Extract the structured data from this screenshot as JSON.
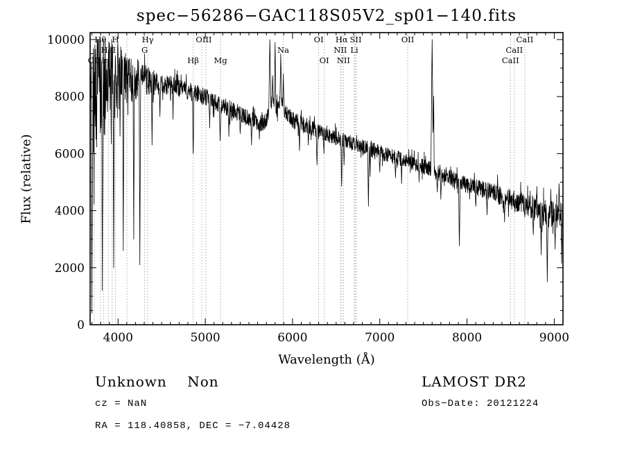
{
  "header": {
    "title": "spec−56286−GAC118S05V2_sp01−140.fits"
  },
  "footer": {
    "class_label": "Unknown    Non",
    "survey": "LAMOST DR2",
    "cz": "cz = NaN",
    "obs_date": "Obs−Date: 20121224",
    "ra_dec": "RA = 118.40858, DEC = −7.04428"
  },
  "colors": {
    "trace": "#000000",
    "ref_line": "#aaaaaa",
    "axis": "#000000",
    "background": "#ffffff"
  },
  "chart_data": {
    "type": "line",
    "title": "spec−56286−GAC118S05V2_sp01−140.fits",
    "xlabel": "Wavelength (Å)",
    "ylabel": "Flux (relative)",
    "xlim": [
      3680,
      9100
    ],
    "ylim": [
      0,
      10000
    ],
    "x_ticks": [
      4000,
      5000,
      6000,
      7000,
      8000,
      9000
    ],
    "y_ticks": [
      0,
      2000,
      4000,
      6000,
      8000,
      10000
    ],
    "x_minor_step": 100,
    "y_minor_step": 500,
    "grid": false,
    "legend": null,
    "ref_lines": [
      3727,
      3798,
      3835,
      3889,
      3933,
      3970,
      4101,
      4305,
      4340,
      4861,
      4959,
      5007,
      5175,
      5893,
      6300,
      6364,
      6548,
      6563,
      6584,
      6708,
      6717,
      6731,
      7320,
      8498,
      8542,
      8662
    ],
    "line_labels": [
      {
        "text": "Hθ",
        "wl": 3798,
        "row": 0
      },
      {
        "text": "H",
        "wl": 3970,
        "row": 0
      },
      {
        "text": "Hγ",
        "wl": 4340,
        "row": 0
      },
      {
        "text": "OIII",
        "wl": 4983,
        "row": 0
      },
      {
        "text": "OI",
        "wl": 6300,
        "row": 0
      },
      {
        "text": "Hα",
        "wl": 6563,
        "row": 0
      },
      {
        "text": "SII",
        "wl": 6724,
        "row": 0
      },
      {
        "text": "OII",
        "wl": 7320,
        "row": 0
      },
      {
        "text": "CaII",
        "wl": 8662,
        "row": 0
      },
      {
        "text": "HeI",
        "wl": 3889,
        "row": 1
      },
      {
        "text": "G",
        "wl": 4305,
        "row": 1
      },
      {
        "text": "Na",
        "wl": 5893,
        "row": 1
      },
      {
        "text": "NII",
        "wl": 6548,
        "row": 1
      },
      {
        "text": "Li",
        "wl": 6708,
        "row": 1
      },
      {
        "text": "CaII",
        "wl": 8542,
        "row": 1
      },
      {
        "text": "OII",
        "wl": 3727,
        "row": 2
      },
      {
        "text": "Hη",
        "wl": 3835,
        "row": 2
      },
      {
        "text": "Hβ",
        "wl": 4861,
        "row": 2
      },
      {
        "text": "Mg",
        "wl": 5175,
        "row": 2
      },
      {
        "text": "OI",
        "wl": 6364,
        "row": 2
      },
      {
        "text": "NII",
        "wl": 6584,
        "row": 2
      },
      {
        "text": "CaII",
        "wl": 8498,
        "row": 2
      }
    ],
    "series": {
      "name": "flux",
      "seed": 42,
      "sample_step": 2.5,
      "continuum": [
        [
          3680,
          8000
        ],
        [
          3750,
          8300
        ],
        [
          3850,
          8500
        ],
        [
          3950,
          8600
        ],
        [
          4050,
          8600
        ],
        [
          4150,
          8600
        ],
        [
          4250,
          8600
        ],
        [
          4350,
          8550
        ],
        [
          4450,
          8450
        ],
        [
          4550,
          8400
        ],
        [
          4650,
          8350
        ],
        [
          4750,
          8250
        ],
        [
          4850,
          8150
        ],
        [
          4950,
          8050
        ],
        [
          5050,
          7900
        ],
        [
          5150,
          7750
        ],
        [
          5250,
          7600
        ],
        [
          5350,
          7450
        ],
        [
          5450,
          7300
        ],
        [
          5550,
          7150
        ],
        [
          5650,
          7050
        ],
        [
          5700,
          7200
        ],
        [
          5750,
          7800
        ],
        [
          5800,
          7700
        ],
        [
          5850,
          7800
        ],
        [
          5900,
          7600
        ],
        [
          5950,
          7300
        ],
        [
          6050,
          7100
        ],
        [
          6150,
          7000
        ],
        [
          6250,
          6850
        ],
        [
          6350,
          6700
        ],
        [
          6450,
          6600
        ],
        [
          6550,
          6500
        ],
        [
          6650,
          6400
        ],
        [
          6750,
          6300
        ],
        [
          6850,
          6200
        ],
        [
          6950,
          6100
        ],
        [
          7050,
          6000
        ],
        [
          7150,
          5900
        ],
        [
          7250,
          5800
        ],
        [
          7350,
          5700
        ],
        [
          7450,
          5600
        ],
        [
          7550,
          5500
        ],
        [
          7650,
          5350
        ],
        [
          7750,
          5200
        ],
        [
          7850,
          5100
        ],
        [
          7950,
          4950
        ],
        [
          8050,
          4850
        ],
        [
          8150,
          4750
        ],
        [
          8250,
          4650
        ],
        [
          8350,
          4550
        ],
        [
          8450,
          4450
        ],
        [
          8550,
          4350
        ],
        [
          8650,
          4250
        ],
        [
          8750,
          4100
        ],
        [
          8850,
          3950
        ],
        [
          8950,
          3850
        ],
        [
          9050,
          3800
        ],
        [
          9100,
          3850
        ]
      ],
      "noise": [
        [
          3680,
          2300
        ],
        [
          3780,
          2100
        ],
        [
          3880,
          1900
        ],
        [
          3980,
          1400
        ],
        [
          4080,
          1000
        ],
        [
          4180,
          800
        ],
        [
          4280,
          600
        ],
        [
          4380,
          450
        ],
        [
          4500,
          360
        ],
        [
          4700,
          320
        ],
        [
          5000,
          300
        ],
        [
          5300,
          290
        ],
        [
          5600,
          290
        ],
        [
          5800,
          340
        ],
        [
          6100,
          280
        ],
        [
          6400,
          260
        ],
        [
          6700,
          250
        ],
        [
          7000,
          260
        ],
        [
          7300,
          270
        ],
        [
          7600,
          280
        ],
        [
          7900,
          300
        ],
        [
          8200,
          320
        ],
        [
          8500,
          340
        ],
        [
          8800,
          420
        ],
        [
          9000,
          520
        ],
        [
          9100,
          560
        ]
      ],
      "spikes": [
        [
          3700,
          400,
          8
        ],
        [
          3770,
          9800,
          7
        ],
        [
          3820,
          1200,
          8
        ],
        [
          3890,
          9600,
          7
        ],
        [
          3950,
          2000,
          8
        ],
        [
          4000,
          9500,
          7
        ],
        [
          4060,
          2600,
          8
        ],
        [
          4120,
          9300,
          7
        ],
        [
          4180,
          3000,
          8
        ],
        [
          4250,
          2100,
          8
        ],
        [
          4390,
          6300,
          7
        ],
        [
          4480,
          7300,
          6
        ],
        [
          4630,
          7200,
          6
        ],
        [
          4861,
          5750,
          9
        ],
        [
          5050,
          6900,
          7
        ],
        [
          5170,
          6450,
          10
        ],
        [
          5270,
          6600,
          7
        ],
        [
          5400,
          6700,
          7
        ],
        [
          5530,
          6300,
          8
        ],
        [
          5620,
          6500,
          7
        ],
        [
          5740,
          10000,
          12
        ],
        [
          5772,
          8800,
          8
        ],
        [
          5800,
          9900,
          9
        ],
        [
          5835,
          7600,
          8
        ],
        [
          5865,
          9500,
          10
        ],
        [
          5895,
          8800,
          8
        ],
        [
          6080,
          6100,
          7
        ],
        [
          6180,
          6300,
          7
        ],
        [
          6280,
          5600,
          9
        ],
        [
          6360,
          6000,
          8
        ],
        [
          6563,
          4750,
          9
        ],
        [
          6590,
          5600,
          7
        ],
        [
          6870,
          4150,
          9
        ],
        [
          6890,
          5200,
          6
        ],
        [
          7000,
          5350,
          7
        ],
        [
          7180,
          5150,
          7
        ],
        [
          7250,
          4950,
          7
        ],
        [
          7450,
          5000,
          7
        ],
        [
          7600,
          10000,
          14
        ],
        [
          7617,
          8200,
          7
        ],
        [
          7660,
          4650,
          8
        ],
        [
          7700,
          4400,
          8
        ],
        [
          7912,
          2650,
          9
        ],
        [
          8100,
          4150,
          7
        ],
        [
          8230,
          3850,
          7
        ],
        [
          8350,
          5250,
          6
        ],
        [
          8430,
          3600,
          7
        ],
        [
          8550,
          3950,
          7
        ],
        [
          8662,
          3750,
          7
        ],
        [
          8760,
          3150,
          7
        ],
        [
          8800,
          4850,
          7
        ],
        [
          8850,
          2450,
          7
        ],
        [
          8920,
          1500,
          9
        ],
        [
          8960,
          4750,
          7
        ],
        [
          9010,
          2650,
          7
        ],
        [
          9055,
          4950,
          8
        ],
        [
          9085,
          2150,
          7
        ]
      ]
    }
  }
}
